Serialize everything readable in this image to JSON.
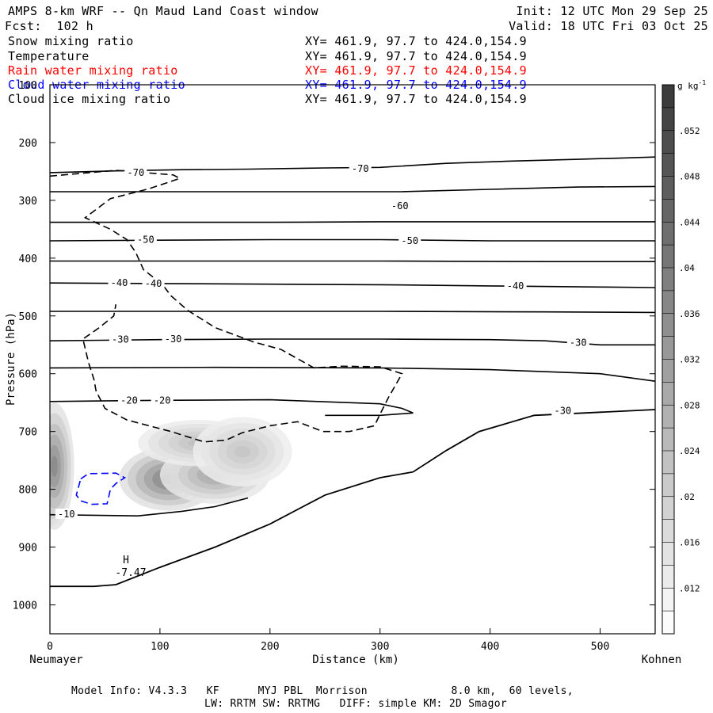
{
  "header": {
    "title": "AMPS 8-km WRF -- Qn Maud Land Coast window",
    "init": "Init: 12 UTC Mon 29 Sep 25",
    "fcst": "Fcst:  102 h",
    "valid": "Valid: 18 UTC Fri 03 Oct 25"
  },
  "fields": [
    {
      "name": "Snow mixing ratio",
      "xy": "XY= 461.9, 97.7 to 424.0,154.9",
      "color": "#000000"
    },
    {
      "name": "Temperature",
      "xy": "XY= 461.9, 97.7 to 424.0,154.9",
      "color": "#000000"
    },
    {
      "name": "Rain water mixing ratio",
      "xy": "XY= 461.9, 97.7 to 424.0,154.9",
      "color": "#ff0000"
    },
    {
      "name": "Cloud water mixing ratio",
      "xy": "XY= 461.9, 97.7 to 424.0,154.9",
      "color": "#0000ff"
    },
    {
      "name": "Cloud ice mixing ratio",
      "xy": "XY= 461.9, 97.7 to 424.0,154.9",
      "color": "#000000"
    }
  ],
  "footer": {
    "line1": "Model Info: V4.3.3   KF      MYJ PBL  Morrison             8.0 km,  60 levels,",
    "line2": "LW: RRTM SW: RRTMG   DIFF: simple KM: 2D Smagor"
  },
  "chart_data": {
    "type": "cross-section",
    "xlabel": "Distance (km)",
    "ylabel": "Pressure (hPa)",
    "xlim": [
      0,
      550
    ],
    "ylim": [
      1050,
      100
    ],
    "x_ticks": [
      0,
      100,
      200,
      300,
      400,
      500
    ],
    "y_ticks": [
      100,
      200,
      300,
      400,
      500,
      600,
      700,
      800,
      900,
      1000
    ],
    "left_label": "Neumayer",
    "right_label": "Kohnen",
    "colorbar": {
      "unit": "g kg",
      "unit_exp": "-1",
      "ticks": [
        ".052",
        ".048",
        ".044",
        ".04",
        ".036",
        ".032",
        ".028",
        ".024",
        ".02",
        ".016",
        ".012"
      ]
    },
    "temperature_contours": [
      {
        "label": "-70",
        "points": [
          [
            0,
            252
          ],
          [
            60,
            249
          ],
          [
            120,
            247
          ],
          [
            180,
            246
          ],
          [
            250,
            244
          ],
          [
            300,
            243
          ],
          [
            360,
            236
          ],
          [
            420,
            232
          ],
          [
            480,
            229
          ],
          [
            550,
            225
          ]
        ]
      },
      {
        "label": "",
        "points": [
          [
            0,
            285
          ],
          [
            80,
            285
          ],
          [
            160,
            285
          ],
          [
            240,
            285
          ],
          [
            320,
            285
          ],
          [
            400,
            281
          ],
          [
            480,
            277
          ],
          [
            550,
            276
          ]
        ]
      },
      {
        "label": "",
        "points": [
          [
            0,
            338
          ],
          [
            100,
            338
          ],
          [
            200,
            338
          ],
          [
            300,
            337
          ],
          [
            400,
            337
          ],
          [
            500,
            337
          ],
          [
            550,
            337
          ]
        ]
      },
      {
        "label": "-50",
        "points": [
          [
            0,
            370
          ],
          [
            100,
            369
          ],
          [
            200,
            368
          ],
          [
            300,
            368
          ],
          [
            400,
            370
          ],
          [
            500,
            370
          ],
          [
            550,
            370
          ]
        ]
      },
      {
        "label": "",
        "points": [
          [
            0,
            405
          ],
          [
            150,
            405
          ],
          [
            300,
            405
          ],
          [
            450,
            406
          ],
          [
            550,
            406
          ]
        ]
      },
      {
        "label": "-40",
        "points": [
          [
            0,
            443
          ],
          [
            100,
            444
          ],
          [
            200,
            445
          ],
          [
            300,
            446
          ],
          [
            400,
            448
          ],
          [
            500,
            450
          ],
          [
            550,
            451
          ]
        ]
      },
      {
        "label": "",
        "points": [
          [
            0,
            492
          ],
          [
            150,
            492
          ],
          [
            300,
            492
          ],
          [
            450,
            493
          ],
          [
            550,
            494
          ]
        ]
      },
      {
        "label": "-30",
        "points": [
          [
            0,
            543
          ],
          [
            100,
            541
          ],
          [
            200,
            540
          ],
          [
            300,
            540
          ],
          [
            400,
            541
          ],
          [
            450,
            543
          ],
          [
            500,
            550
          ],
          [
            550,
            550
          ]
        ]
      },
      {
        "label": "",
        "points": [
          [
            0,
            590
          ],
          [
            150,
            589
          ],
          [
            300,
            590
          ],
          [
            400,
            593
          ],
          [
            500,
            600
          ],
          [
            550,
            613
          ]
        ]
      },
      {
        "label": "-20",
        "points": [
          [
            0,
            648
          ],
          [
            100,
            646
          ],
          [
            200,
            645
          ],
          [
            300,
            652
          ],
          [
            320,
            660
          ],
          [
            330,
            668
          ],
          [
            300,
            672
          ],
          [
            250,
            672
          ]
        ]
      },
      {
        "label": "-10",
        "points": [
          [
            0,
            844
          ],
          [
            80,
            846
          ],
          [
            120,
            838
          ],
          [
            150,
            830
          ],
          [
            180,
            815
          ]
        ]
      }
    ],
    "contour_labels": [
      {
        "text": "-70",
        "x": 78,
        "p": 252
      },
      {
        "text": "-70",
        "x": 282,
        "p": 245
      },
      {
        "text": "-60",
        "x": 318,
        "p": 310
      },
      {
        "text": "-50",
        "x": 87,
        "p": 368
      },
      {
        "text": "-50",
        "x": 327,
        "p": 370
      },
      {
        "text": "-40",
        "x": 63,
        "p": 443
      },
      {
        "text": "-40",
        "x": 94,
        "p": 444
      },
      {
        "text": "-40",
        "x": 423,
        "p": 448
      },
      {
        "text": "-30",
        "x": 64,
        "p": 541
      },
      {
        "text": "-30",
        "x": 112,
        "p": 540
      },
      {
        "text": "-30",
        "x": 480,
        "p": 546
      },
      {
        "text": "-30",
        "x": 466,
        "p": 664
      },
      {
        "text": "-20",
        "x": 72,
        "p": 646
      },
      {
        "text": "-20",
        "x": 102,
        "p": 646
      },
      {
        "text": "-10",
        "x": 15,
        "p": 843
      }
    ],
    "cloud_ice_contour": {
      "points": [
        [
          0,
          258
        ],
        [
          60,
          248
        ],
        [
          112,
          256
        ],
        [
          118,
          262
        ],
        [
          90,
          280
        ],
        [
          55,
          297
        ],
        [
          32,
          330
        ],
        [
          55,
          350
        ],
        [
          70,
          368
        ],
        [
          78,
          390
        ],
        [
          85,
          420
        ],
        [
          102,
          445
        ],
        [
          110,
          465
        ],
        [
          125,
          490
        ],
        [
          150,
          520
        ],
        [
          185,
          545
        ],
        [
          210,
          558
        ],
        [
          240,
          590
        ],
        [
          265,
          587
        ],
        [
          300,
          588
        ],
        [
          320,
          600
        ],
        [
          308,
          640
        ],
        [
          300,
          670
        ],
        [
          295,
          690
        ],
        [
          272,
          700
        ],
        [
          248,
          700
        ],
        [
          225,
          683
        ],
        [
          200,
          690
        ],
        [
          175,
          702
        ],
        [
          160,
          715
        ],
        [
          140,
          718
        ],
        [
          110,
          700
        ],
        [
          90,
          690
        ],
        [
          70,
          680
        ],
        [
          50,
          660
        ],
        [
          42,
          630
        ],
        [
          40,
          610
        ],
        [
          35,
          580
        ],
        [
          30,
          540
        ],
        [
          45,
          520
        ],
        [
          58,
          500
        ],
        [
          60,
          480
        ]
      ]
    },
    "cloud_water_contour": {
      "points": [
        [
          28,
          782
        ],
        [
          35,
          773
        ],
        [
          60,
          772
        ],
        [
          68,
          780
        ],
        [
          60,
          790
        ],
        [
          55,
          800
        ],
        [
          52,
          825
        ],
        [
          38,
          826
        ],
        [
          28,
          820
        ],
        [
          24,
          810
        ]
      ]
    },
    "shading": [
      {
        "x": 0,
        "p": 795,
        "value": 0.052,
        "rx": 14,
        "rp": 70
      },
      {
        "x": 4,
        "p": 760,
        "value": 0.032,
        "rx": 18,
        "rp": 110
      },
      {
        "x": 108,
        "p": 782,
        "value": 0.036,
        "rx": 45,
        "rp": 55
      },
      {
        "x": 150,
        "p": 775,
        "value": 0.024,
        "rx": 50,
        "rp": 50
      },
      {
        "x": 135,
        "p": 720,
        "value": 0.016,
        "rx": 55,
        "rp": 40
      },
      {
        "x": 175,
        "p": 735,
        "value": 0.014,
        "rx": 45,
        "rp": 60
      }
    ],
    "high": {
      "symbol": "H",
      "value": "-7.47",
      "x": 68,
      "p": 940
    }
  }
}
